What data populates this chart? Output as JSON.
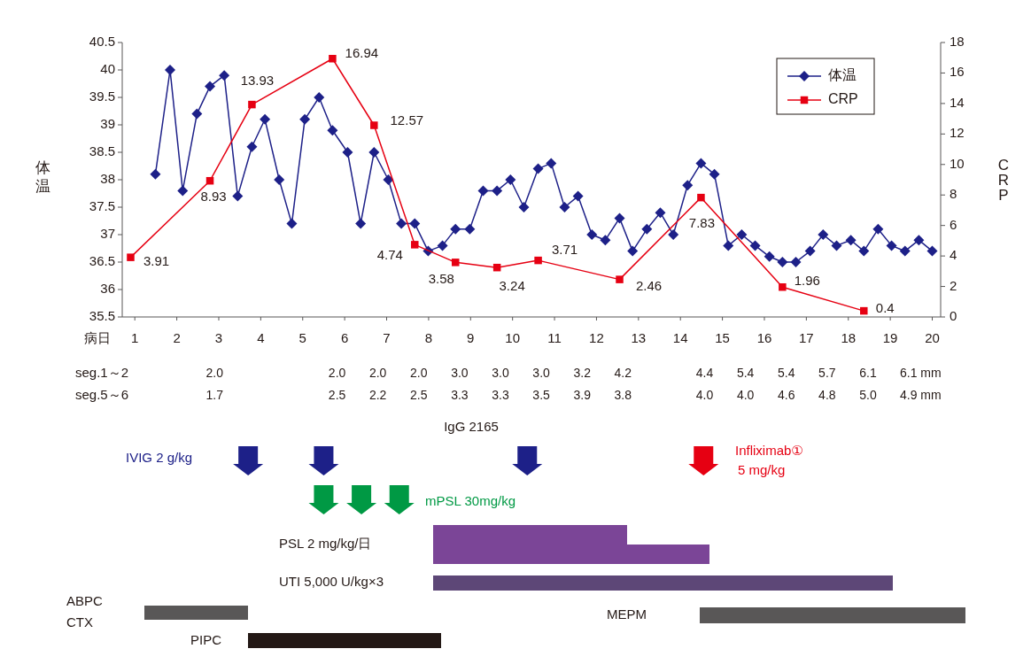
{
  "chart_data": [
    {
      "type": "line",
      "xlabel": "病日",
      "ylabel": "体温",
      "y2label": "CRP",
      "xlim": [
        0.7,
        20.2
      ],
      "xticks": [
        1,
        2,
        3,
        4,
        5,
        6,
        7,
        8,
        9,
        10,
        11,
        12,
        13,
        14,
        15,
        16,
        17,
        18,
        19,
        20
      ],
      "ylim": [
        35.5,
        40.5
      ],
      "yticks": [
        35.5,
        36,
        36.5,
        37,
        37.5,
        38,
        38.5,
        39,
        39.5,
        40,
        40.5
      ],
      "y2lim": [
        0,
        18
      ],
      "y2ticks": [
        0,
        2,
        4,
        6,
        8,
        10,
        12,
        14,
        16,
        18
      ],
      "legend": "top right",
      "grid": false,
      "series": [
        {
          "name": "体温",
          "color": "#1d2088",
          "marker": "diamond",
          "x": [
            1.49,
            1.84,
            2.14,
            2.48,
            2.79,
            3.13,
            3.45,
            3.79,
            4.1,
            4.44,
            4.74,
            5.05,
            5.39,
            5.71,
            6.07,
            6.38,
            6.7,
            7.04,
            7.35,
            7.67,
            7.99,
            8.33,
            8.64,
            8.98,
            9.3,
            9.63,
            9.95,
            10.27,
            10.61,
            10.92,
            11.24,
            11.56,
            11.89,
            12.21,
            12.55,
            12.86,
            13.2,
            13.52,
            13.83,
            14.17,
            14.49,
            14.81,
            15.14,
            15.46,
            15.78,
            16.12,
            16.43,
            16.75,
            17.09,
            17.4,
            17.72,
            18.06,
            18.37,
            18.71,
            19.03,
            19.35,
            19.68,
            20.0
          ],
          "values": [
            38.1,
            40.0,
            37.8,
            39.2,
            39.7,
            39.9,
            37.7,
            38.6,
            39.1,
            38.0,
            37.2,
            39.1,
            39.5,
            38.9,
            38.5,
            37.2,
            38.5,
            38.0,
            37.2,
            37.2,
            36.7,
            36.8,
            37.1,
            37.1,
            37.8,
            37.8,
            38.0,
            37.5,
            38.2,
            38.3,
            37.5,
            37.7,
            37.0,
            36.9,
            37.3,
            36.7,
            37.1,
            37.4,
            37.0,
            37.9,
            38.3,
            38.1,
            36.8,
            37.0,
            36.8,
            36.6,
            36.5,
            36.5,
            36.7,
            37.0,
            36.8,
            36.9,
            36.7,
            37.1,
            36.8,
            36.7,
            36.9,
            36.7
          ]
        },
        {
          "name": "CRP",
          "color": "#e60012",
          "marker": "square",
          "axis": "y2",
          "x": [
            0.9,
            2.79,
            3.79,
            5.71,
            6.7,
            7.67,
            8.64,
            9.63,
            10.61,
            12.55,
            14.49,
            16.43,
            18.37
          ],
          "values": [
            3.91,
            8.93,
            13.93,
            16.94,
            12.57,
            4.74,
            3.58,
            3.24,
            3.71,
            2.46,
            7.83,
            1.96,
            0.4
          ],
          "value_labels": [
            "3.91",
            "8.93",
            "13.93",
            "16.94",
            "12.57",
            "4.74",
            "3.58",
            "3.24",
            "3.71",
            "2.46",
            "7.83",
            "1.96",
            "0.4"
          ]
        }
      ]
    },
    {
      "type": "other",
      "annotations": [
        "seg.1～2\t\t\t2.0\t\t\t2.0\t2.0\t2.0\t3.0\t3.0\t3.0\t3.2\t4.2\t\t4.4\t5.4\t5.4\t5.7\t6.1\t6.1 mm",
        "seg.5～6\t\t\t1.7\t\t\t2.5\t2.2\t2.5\t3.3\t3.3\t3.5\t3.9\t3.8\t\t4.0\t4.0\t4.6\t4.8\t5.0\t4.9 mm",
        "IgG 2165"
      ]
    },
    {
      "type": "other",
      "annotations": [
        "IVIG 2 g/kg",
        "Infliximab①\n5 mg/kg",
        "mPSL 30mg/kg",
        "PSL 2 mg/kg/日",
        "UTI 5,000 U/kg×3",
        "ABPC\nCTX",
        "MEPM",
        "PIPC"
      ]
    }
  ]
}
